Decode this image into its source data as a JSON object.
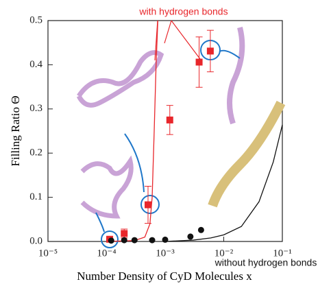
{
  "chart_data": {
    "type": "scatter",
    "xlabel": "Number Density of CyD Molecules x",
    "ylabel": "Filling Ratio Θ",
    "xscale": "log",
    "xlim": [
      1e-05,
      0.1
    ],
    "xticks": [
      {
        "value": 1e-05,
        "label": "10⁻⁵"
      },
      {
        "value": 0.0001,
        "label": "10⁻⁴"
      },
      {
        "value": 0.001,
        "label": "10⁻³"
      },
      {
        "value": 0.01,
        "label": "10⁻²"
      },
      {
        "value": 0.1,
        "label": "10⁻¹"
      }
    ],
    "ylim": [
      0,
      0.5
    ],
    "yticks": [
      {
        "value": 0,
        "label": "0.0"
      },
      0.1,
      0.2,
      0.3,
      0.4,
      0.5
    ],
    "series": [
      {
        "color": "#e8262b",
        "marker": "square",
        "x": [
          0.000113,
          0.0002,
          0.00051,
          0.0012,
          0.0038,
          0.0059
        ],
        "values": [
          0.005,
          0.018,
          0.083,
          0.275,
          0.406,
          0.431
        ],
        "errors": [
          0.004,
          0.01,
          0.042,
          0.033,
          0.057,
          0.047
        ]
      },
      {
        "color": "#111111",
        "marker": "circle",
        "x": [
          0.00012,
          0.0002,
          0.0003,
          0.0006,
          0.001,
          0.0027,
          0.0041
        ],
        "values": [
          0.002,
          0.003,
          0.003,
          0.003,
          0.004,
          0.011,
          0.026
        ]
      }
    ],
    "curves": [
      {
        "color": "#e8262b",
        "x": [
          0.0001,
          0.0003,
          0.00045,
          0.00055,
          0.0006,
          0.00065,
          0.0007,
          0.00075
        ],
        "values": [
          0,
          0.002,
          0.01,
          0.04,
          0.1,
          0.25,
          0.4,
          0.5
        ]
      },
      {
        "color": "#111111",
        "x": [
          0.001,
          0.003,
          0.006,
          0.01,
          0.02,
          0.04,
          0.07,
          0.1
        ],
        "values": [
          0,
          0.003,
          0.008,
          0.015,
          0.034,
          0.09,
          0.18,
          0.264
        ]
      }
    ],
    "annotations": [
      "with hydrogen bonds",
      "without hydrogen bonds"
    ]
  }
}
